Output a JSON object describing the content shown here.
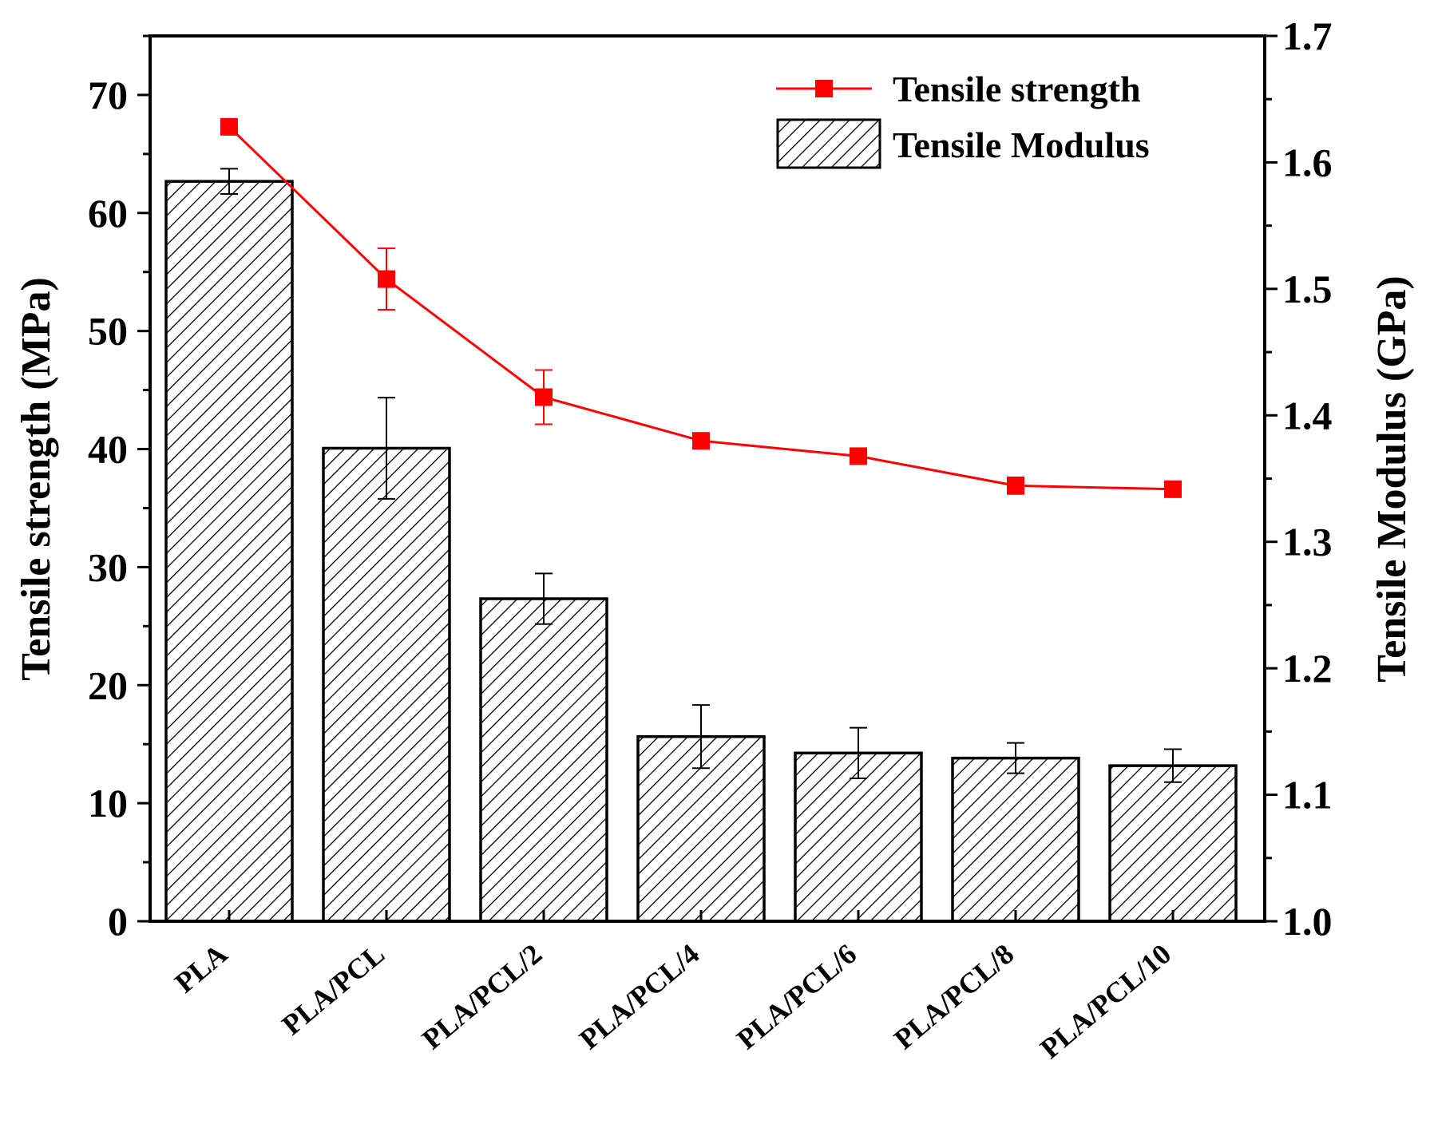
{
  "chart_data": {
    "type": "bar+line",
    "categories": [
      "PLA",
      "PLA/PCL",
      "PLA/PCL/2",
      "PLA/PCL/4",
      "PLA/PCL/6",
      "PLA/PCL/8",
      "PLA/PCL/10"
    ],
    "left_axis": {
      "label": "Tensile strength (MPa)",
      "ylim": [
        0,
        75
      ],
      "ticks": [
        "0",
        "10",
        "20",
        "30",
        "40",
        "50",
        "60",
        "70"
      ],
      "tick_values": [
        0,
        10,
        20,
        30,
        40,
        50,
        60,
        70
      ]
    },
    "right_axis": {
      "label": "Tensile Modulus (GPa)",
      "ylim": [
        1.0,
        1.7
      ],
      "ticks": [
        "1.0",
        "1.1",
        "1.2",
        "1.3",
        "1.4",
        "1.5",
        "1.6",
        "1.7"
      ],
      "tick_values": [
        1.0,
        1.1,
        1.2,
        1.3,
        1.4,
        1.5,
        1.6,
        1.7
      ]
    },
    "series": [
      {
        "name": "Tensile Modulus",
        "kind": "bar",
        "axis": "right",
        "pattern": "diagonal-hatch",
        "values": [
          1.585,
          1.374,
          1.255,
          1.146,
          1.133,
          1.129,
          1.123
        ],
        "errors": [
          0.01,
          0.04,
          0.02,
          0.025,
          0.02,
          0.012,
          0.013
        ]
      },
      {
        "name": "Tensile strength",
        "kind": "line",
        "axis": "left",
        "color": "#ff0000",
        "values": [
          67.3,
          54.4,
          44.4,
          40.7,
          39.4,
          36.9,
          36.6
        ],
        "errors": [
          0.3,
          2.6,
          2.3,
          0.4,
          0.3,
          0.7,
          0.3
        ]
      }
    ],
    "legend": {
      "position": "top-right",
      "line_label": "Tensile strength",
      "bar_label": "Tensile Modulus"
    }
  }
}
